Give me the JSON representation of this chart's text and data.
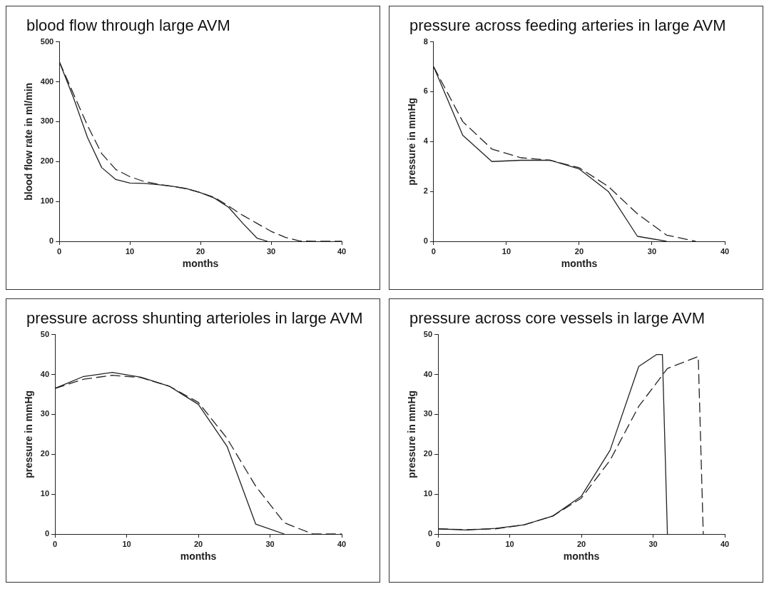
{
  "chart_data": [
    {
      "type": "line",
      "title": "blood flow through large AVM",
      "xlabel": "months",
      "ylabel": "blood flow rate in ml/min",
      "xlim": [
        0,
        40
      ],
      "xticks": [
        0,
        10,
        20,
        30,
        40
      ],
      "ylim": [
        0,
        500
      ],
      "yticks": [
        0,
        100,
        200,
        300,
        400,
        500
      ],
      "grid": false,
      "legend": false,
      "marker": "none",
      "series": [
        {
          "color": "#222222",
          "line_style": "solid",
          "x": [
            0,
            2,
            4,
            6,
            8,
            10,
            12,
            14,
            16,
            18,
            20,
            22,
            24,
            26,
            28,
            29.5
          ],
          "values": [
            450,
            360,
            260,
            185,
            155,
            146,
            145,
            142,
            138,
            132,
            122,
            108,
            85,
            45,
            8,
            0
          ]
        },
        {
          "color": "#222222",
          "line_style": "dashed",
          "x": [
            0,
            2,
            4,
            6,
            8,
            10,
            12,
            14,
            16,
            18,
            20,
            22,
            24,
            26,
            28,
            30,
            32,
            34,
            36,
            40
          ],
          "values": [
            450,
            370,
            290,
            220,
            180,
            162,
            150,
            143,
            138,
            132,
            122,
            110,
            88,
            65,
            45,
            25,
            10,
            1,
            0,
            0
          ]
        }
      ]
    },
    {
      "type": "line",
      "title": "pressure across feeding arteries in large AVM",
      "xlabel": "months",
      "ylabel": "pressure in mmHg",
      "xlim": [
        0,
        40
      ],
      "xticks": [
        0,
        10,
        20,
        30,
        40
      ],
      "ylim": [
        0,
        8
      ],
      "yticks": [
        0,
        2,
        4,
        6,
        8
      ],
      "grid": false,
      "legend": false,
      "marker": "none",
      "series": [
        {
          "color": "#222222",
          "line_style": "solid",
          "x": [
            0,
            4,
            8,
            12,
            16,
            20,
            24,
            28,
            32
          ],
          "values": [
            7,
            4.25,
            3.2,
            3.25,
            3.25,
            2.9,
            2.0,
            0.2,
            0
          ]
        },
        {
          "color": "#222222",
          "line_style": "dashed",
          "x": [
            0,
            4,
            8,
            12,
            16,
            20,
            24,
            28,
            32,
            36
          ],
          "values": [
            7,
            4.8,
            3.7,
            3.35,
            3.25,
            2.95,
            2.2,
            1.1,
            0.25,
            0
          ]
        }
      ]
    },
    {
      "type": "line",
      "title": "pressure across shunting arterioles in large AVM",
      "xlabel": "months",
      "ylabel": "pressure in mmHg",
      "xlim": [
        0,
        40
      ],
      "xticks": [
        0,
        10,
        20,
        30,
        40
      ],
      "ylim": [
        0,
        50
      ],
      "yticks": [
        0,
        10,
        20,
        30,
        40,
        50
      ],
      "grid": false,
      "legend": false,
      "marker": "none",
      "series": [
        {
          "color": "#222222",
          "line_style": "solid",
          "x": [
            0,
            4,
            8,
            12,
            16,
            20,
            24,
            28,
            32
          ],
          "values": [
            36.5,
            39.5,
            40.5,
            39.3,
            37,
            32.5,
            22,
            2.5,
            0
          ]
        },
        {
          "color": "#222222",
          "line_style": "dashed",
          "x": [
            0,
            4,
            8,
            12,
            16,
            20,
            24,
            28,
            32,
            36,
            40
          ],
          "values": [
            36.5,
            38.8,
            39.8,
            39.2,
            37,
            33,
            24,
            12,
            2.8,
            0,
            0
          ]
        }
      ]
    },
    {
      "type": "line",
      "title": "pressure across core vessels in large AVM",
      "xlabel": "months",
      "ylabel": "pressure in mmHg",
      "xlim": [
        0,
        40
      ],
      "xticks": [
        0,
        10,
        20,
        30,
        40
      ],
      "ylim": [
        0,
        50
      ],
      "yticks": [
        0,
        10,
        20,
        30,
        40,
        50
      ],
      "grid": false,
      "legend": false,
      "marker": "none",
      "series": [
        {
          "color": "#222222",
          "line_style": "solid",
          "x": [
            0,
            4,
            8,
            12,
            16,
            20,
            24,
            28,
            30.5,
            31.3,
            32
          ],
          "values": [
            1.3,
            1.0,
            1.4,
            2.3,
            4.5,
            9.5,
            21,
            42,
            45,
            45,
            0
          ]
        },
        {
          "color": "#222222",
          "line_style": "dashed",
          "x": [
            0,
            4,
            8,
            12,
            16,
            20,
            24,
            28,
            32,
            36.3,
            37
          ],
          "values": [
            1.3,
            1.1,
            1.3,
            2.3,
            4.5,
            9,
            18.5,
            32,
            41.5,
            44.5,
            0
          ]
        }
      ]
    }
  ]
}
